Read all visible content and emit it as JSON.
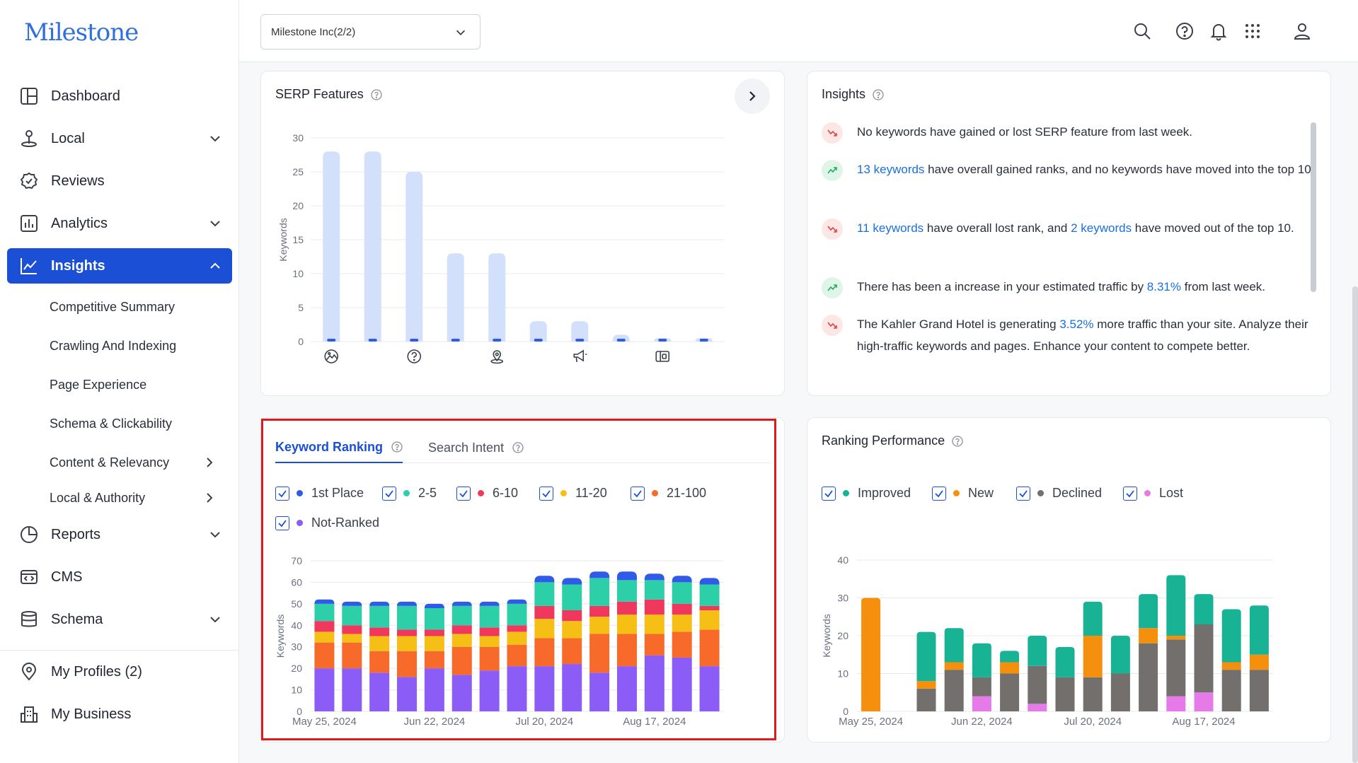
{
  "brand": {
    "logo_text": "Milestone",
    "accent": "#1a4fd6"
  },
  "sidebar": {
    "items": [
      {
        "label": "Dashboard",
        "icon": "dashboard-icon"
      },
      {
        "label": "Local",
        "icon": "local-pin-icon",
        "chevron": "down"
      },
      {
        "label": "Reviews",
        "icon": "reviews-icon"
      },
      {
        "label": "Analytics",
        "icon": "analytics-icon",
        "chevron": "down"
      },
      {
        "label": "Insights",
        "icon": "insights-icon",
        "chevron": "up",
        "active": true
      },
      {
        "label": "Reports",
        "icon": "reports-icon",
        "chevron": "down"
      },
      {
        "label": "CMS",
        "icon": "cms-icon"
      },
      {
        "label": "Schema",
        "icon": "schema-icon",
        "chevron": "down"
      },
      {
        "label": "My Profiles (2)",
        "icon": "location-icon"
      },
      {
        "label": "My Business",
        "icon": "business-icon"
      }
    ],
    "sub_items": [
      {
        "label": "Competitive Summary"
      },
      {
        "label": "Crawling And Indexing"
      },
      {
        "label": "Page Experience"
      },
      {
        "label": "Schema & Clickability"
      },
      {
        "label": "Content & Relevancy",
        "chevron": "right"
      },
      {
        "label": "Local & Authority",
        "chevron": "right"
      }
    ]
  },
  "topbar": {
    "org_select": "Milestone Inc(2/2)"
  },
  "serp": {
    "title": "SERP Features",
    "ylabel": "Keywords"
  },
  "insights": {
    "title": "Insights",
    "rows": [
      {
        "trend": "down",
        "parts": [
          "No keywords have gained or lost SERP feature from last week."
        ]
      },
      {
        "trend": "up",
        "parts": [
          "",
          "13 keywords",
          " have overall gained ranks, and no keywords have moved into the top 10."
        ]
      },
      {
        "trend": "down",
        "parts": [
          "",
          "11 keywords",
          " have overall lost rank, and ",
          "2 keywords",
          " have moved out of the top 10."
        ]
      },
      {
        "trend": "up",
        "parts": [
          "There has been a increase in your estimated traffic by ",
          "8.31%",
          " from last week."
        ]
      },
      {
        "trend": "down",
        "parts": [
          "The Kahler Grand Hotel is generating ",
          "3.52%",
          " more traffic than your site. Analyze their high-traffic keywords and pages. Enhance your content to compete better."
        ]
      }
    ]
  },
  "keyword_ranking": {
    "tabs": [
      "Keyword Ranking",
      "Search Intent"
    ],
    "legend": [
      {
        "label": "1st Place",
        "color": "#2f5be8"
      },
      {
        "label": "2-5",
        "color": "#2dcfa8"
      },
      {
        "label": "6-10",
        "color": "#f0375e"
      },
      {
        "label": "11-20",
        "color": "#f5bf15"
      },
      {
        "label": "21-100",
        "color": "#f86a2a"
      },
      {
        "label": "Not-Ranked",
        "color": "#8b5cf6"
      }
    ],
    "ylabel": "Keywords"
  },
  "ranking_performance": {
    "title": "Ranking Performance",
    "legend": [
      {
        "label": "Improved",
        "color": "#17b394"
      },
      {
        "label": "New",
        "color": "#f5900f"
      },
      {
        "label": "Declined",
        "color": "#736f6c"
      },
      {
        "label": "Lost",
        "color": "#e57ae8"
      }
    ],
    "ylabel": "Keywords"
  },
  "chart_data": [
    {
      "type": "bar",
      "name": "serp-features",
      "ylim": [
        0,
        30
      ],
      "yticks": [
        0,
        5,
        10,
        15,
        20,
        25,
        30
      ],
      "ylabel": "Keywords",
      "values": [
        28,
        28,
        25,
        13,
        13,
        3,
        3,
        1,
        0.5,
        0.5
      ],
      "icons": [
        "image-icon",
        "",
        "faq-icon",
        "",
        "local-pack-icon",
        "",
        "ads-icon",
        "",
        "app-icon",
        ""
      ],
      "color": "#d3e0fb"
    },
    {
      "type": "bar",
      "stacked": true,
      "name": "keyword-ranking",
      "ylim": [
        0,
        70
      ],
      "yticks": [
        0,
        10,
        20,
        30,
        40,
        50,
        60,
        70
      ],
      "ylabel": "Keywords",
      "x_ticks": [
        "May 25, 2024",
        "Jun 22, 2024",
        "Jul 20, 2024",
        "Aug 17, 2024"
      ],
      "x_tick_index": [
        0,
        4,
        8,
        12
      ],
      "series": [
        {
          "name": "Not-Ranked",
          "color": "#8b5cf6",
          "values": [
            20,
            20,
            18,
            16,
            20,
            17,
            19,
            21,
            21,
            22,
            18,
            21,
            26,
            25,
            21
          ]
        },
        {
          "name": "21-100",
          "color": "#f86a2a",
          "values": [
            12,
            12,
            10,
            12,
            8,
            13,
            11,
            10,
            13,
            12,
            18,
            15,
            10,
            12,
            17
          ]
        },
        {
          "name": "11-20",
          "color": "#f5bf15",
          "values": [
            5,
            4,
            7,
            7,
            7,
            6,
            5,
            6,
            9,
            8,
            8,
            9,
            9,
            8,
            9
          ]
        },
        {
          "name": "6-10",
          "color": "#f0375e",
          "values": [
            5,
            4,
            4,
            3,
            3,
            4,
            4,
            3,
            6,
            5,
            5,
            6,
            7,
            5,
            2
          ]
        },
        {
          "name": "2-5",
          "color": "#2dcfa8",
          "values": [
            8,
            9,
            10,
            11,
            10,
            9,
            10,
            10,
            11,
            12,
            13,
            10,
            9,
            10,
            10
          ]
        },
        {
          "name": "1st Place",
          "color": "#2f5be8",
          "values": [
            2,
            2,
            2,
            2,
            2,
            2,
            2,
            2,
            3,
            3,
            3,
            4,
            3,
            3,
            3
          ]
        }
      ]
    },
    {
      "type": "bar",
      "stacked": true,
      "name": "ranking-performance",
      "ylim": [
        0,
        40
      ],
      "yticks": [
        0,
        10,
        20,
        30,
        40
      ],
      "ylabel": "Keywords",
      "x_ticks": [
        "May 25, 2024",
        "Jun 22, 2024",
        "Jul 20, 2024",
        "Aug 17, 2024"
      ],
      "x_tick_index": [
        0,
        4,
        8,
        12
      ],
      "series": [
        {
          "name": "Lost",
          "color": "#e57ae8",
          "values": [
            0,
            0,
            0,
            0,
            4,
            0,
            2,
            0,
            0,
            0,
            0,
            4,
            5,
            0,
            0
          ]
        },
        {
          "name": "Declined",
          "color": "#736f6c",
          "values": [
            0,
            0,
            6,
            11,
            5,
            10,
            10,
            9,
            9,
            10,
            18,
            15,
            18,
            11,
            11
          ]
        },
        {
          "name": "New",
          "color": "#f5900f",
          "values": [
            30,
            0,
            2,
            2,
            0,
            3,
            0,
            0,
            11,
            0,
            4,
            1,
            0,
            2,
            4
          ]
        },
        {
          "name": "Improved",
          "color": "#17b394",
          "values": [
            0,
            0,
            13,
            9,
            9,
            3,
            8,
            8,
            9,
            10,
            9,
            16,
            8,
            14,
            13
          ]
        }
      ]
    }
  ]
}
